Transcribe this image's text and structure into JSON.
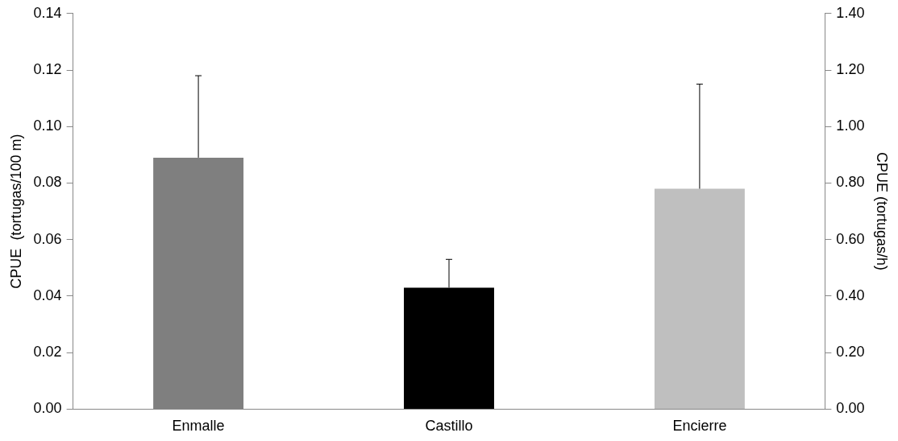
{
  "chart_data": {
    "type": "bar",
    "categories": [
      "Enmalle",
      "Castillo",
      "Encierre"
    ],
    "ylabel": "CPUE  (tortugas/100 m)",
    "y2label": "CPUE (tortugas/h)",
    "series": [
      {
        "colors": [
          "#7f7f7f",
          "#000000",
          null
        ],
        "values": [
          0.089,
          0.043,
          null
        ],
        "errors": [
          [
            0.089,
            0.118
          ],
          [
            0.043,
            0.053
          ],
          null
        ]
      },
      {
        "axis": "y2",
        "colors": [
          null,
          null,
          "#bfbfbf"
        ],
        "values": [
          null,
          null,
          0.78
        ],
        "errors": [
          null,
          null,
          [
            0.78,
            1.15
          ]
        ]
      }
    ],
    "ylim": [
      0,
      0.14
    ],
    "yticks": [
      {
        "value": 0,
        "label": "0.00"
      },
      {
        "value": 0.02,
        "label": "0.02"
      },
      {
        "value": 0.04,
        "label": "0.04"
      },
      {
        "value": 0.06,
        "label": "0.06"
      },
      {
        "value": 0.08,
        "label": "0.08"
      },
      {
        "value": 0.1,
        "label": "0.10"
      },
      {
        "value": 0.12,
        "label": "0.12"
      },
      {
        "value": 0.14,
        "label": "0.14"
      }
    ],
    "y2lim": [
      0,
      1.4
    ],
    "y2ticks": [
      {
        "value": 0,
        "label": "0.00"
      },
      {
        "value": 0.2,
        "label": "0.20"
      },
      {
        "value": 0.4,
        "label": "0.40"
      },
      {
        "value": 0.6,
        "label": "0.60"
      },
      {
        "value": 0.8,
        "label": "0.80"
      },
      {
        "value": 1,
        "label": "1.00"
      },
      {
        "value": 1.2,
        "label": "1.20"
      },
      {
        "value": 1.4,
        "label": "1.40"
      }
    ],
    "grid": false,
    "legend": false
  }
}
